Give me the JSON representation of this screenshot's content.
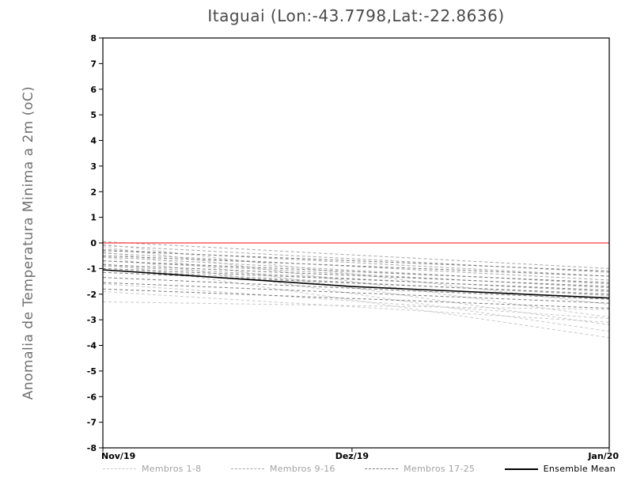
{
  "title": "Itaguai (Lon:-43.7798,Lat:-22.8636)",
  "ylabel": "Anomalia de Temperatura Minima a 2m (oC)",
  "colors": {
    "zero_line": "#fa3c3c",
    "mean": "#000000",
    "group1": "#c9c9c9",
    "group2": "#a6a6a6",
    "group3": "#7d7d7d",
    "axis": "#000000",
    "title": "#4a4a4a",
    "ylabel": "#707070",
    "legend_member_label": "#a2a2a2",
    "legend_mean_label": "#000000"
  },
  "chart_data": {
    "type": "line",
    "title": "Itaguai (Lon:-43.7798,Lat:-22.8636)",
    "xlabel": "",
    "ylabel": "Anomalia de Temperatura Minima a 2m (oC)",
    "ylim": [
      -8,
      8
    ],
    "yticks": [
      8,
      7,
      6,
      5,
      4,
      3,
      2,
      1,
      0,
      -1,
      -2,
      -3,
      -4,
      -5,
      -6,
      -7,
      -8
    ],
    "x_tick_labels": [
      "Nov/19",
      "Dez/19",
      "Jan/20"
    ],
    "x_tick_positions": [
      0,
      0.492,
      1
    ],
    "grid": false,
    "zero_line_y": 0,
    "legend_position": "bottom",
    "series": [
      {
        "name": "Membros 1-8",
        "group": "group1",
        "style": "dashed",
        "members": [
          [
            -0.15,
            -2.9
          ],
          [
            -0.35,
            -3.2
          ],
          [
            -0.55,
            -3.45
          ],
          [
            -0.8,
            -3.7
          ],
          [
            -1.6,
            -2.95
          ],
          [
            -2.3,
            -2.6
          ],
          [
            -0.05,
            -2.4
          ],
          [
            -1.9,
            -3.1
          ]
        ]
      },
      {
        "name": "Membros 9-16",
        "group": "group2",
        "style": "dashed",
        "members": [
          [
            0.05,
            -1.0
          ],
          [
            -0.1,
            -1.15
          ],
          [
            -0.25,
            -1.3
          ],
          [
            -0.4,
            -1.45
          ],
          [
            -0.55,
            -1.6
          ],
          [
            -0.7,
            -1.75
          ],
          [
            -0.9,
            -1.9
          ],
          [
            -1.05,
            -2.05
          ]
        ]
      },
      {
        "name": "Membros 17-25",
        "group": "group3",
        "style": "dashed",
        "members": [
          [
            -0.3,
            -1.1
          ],
          [
            -0.5,
            -1.3
          ],
          [
            -0.7,
            -1.55
          ],
          [
            -0.85,
            -1.7
          ],
          [
            -1.0,
            -1.85
          ],
          [
            -1.15,
            -2.0
          ],
          [
            -1.35,
            -2.2
          ],
          [
            -1.55,
            -2.35
          ],
          [
            -1.8,
            -2.55
          ]
        ]
      }
    ],
    "mean": {
      "name": "Ensemble Mean",
      "x_positions": [
        0,
        0.492,
        1
      ],
      "values": [
        -1.05,
        -1.7,
        -2.15
      ]
    }
  },
  "legend": [
    {
      "label": "Membros 1-8",
      "style": "dashed",
      "color_key": "group1",
      "label_color_key": "legend_member_label"
    },
    {
      "label": "Membros 9-16",
      "style": "dashed",
      "color_key": "group2",
      "label_color_key": "legend_member_label"
    },
    {
      "label": "Membros 17-25",
      "style": "dashed",
      "color_key": "group3",
      "label_color_key": "legend_member_label"
    },
    {
      "label": "Ensemble Mean",
      "style": "solid",
      "color_key": "mean",
      "label_color_key": "legend_mean_label"
    }
  ]
}
